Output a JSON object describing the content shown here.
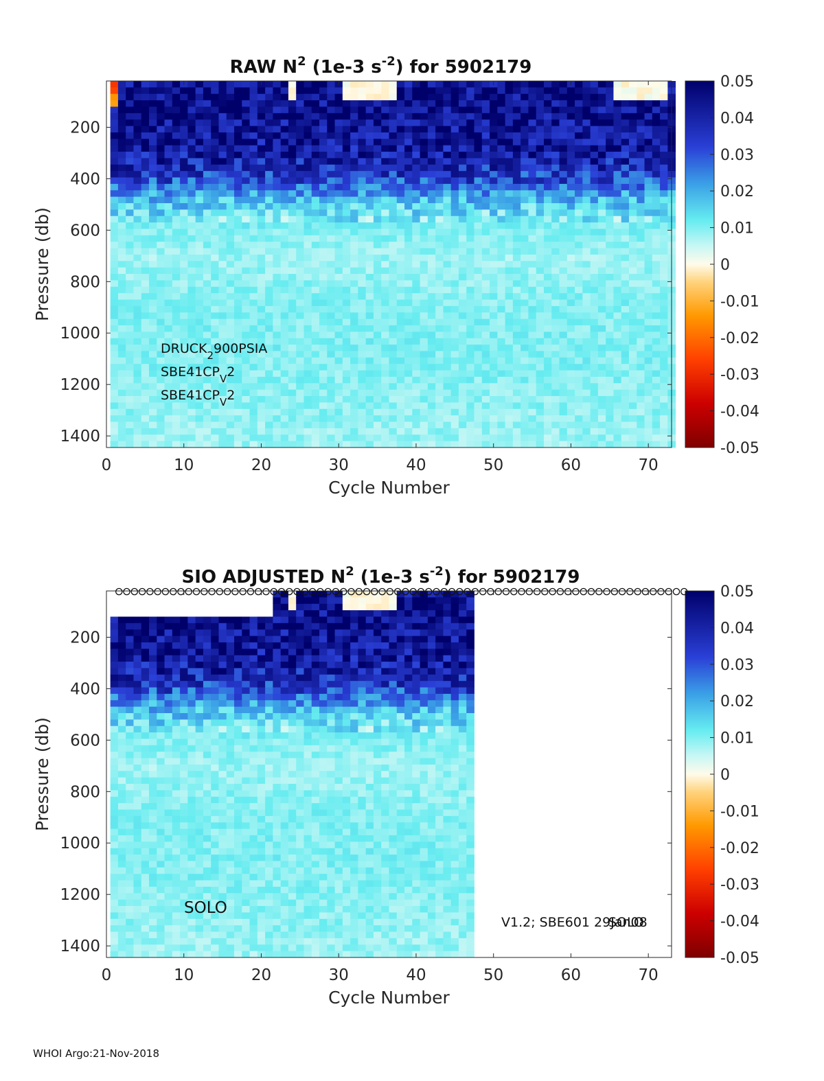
{
  "footer": "WHOI Argo:21-Nov-2018",
  "chart_data": [
    {
      "type": "heatmap",
      "title": "RAW N² (1e-3 s⁻²) for 5902179",
      "title_parts": {
        "pre": "RAW N",
        "sup1": "2",
        "mid": " (1e-3 s",
        "sup2": "-2",
        "post": ") for 5902179"
      },
      "xlabel": "Cycle Number",
      "ylabel": "Pressure (db)",
      "xlim": [
        0,
        73
      ],
      "ylim": [
        1445,
        20
      ],
      "xticks": [
        0,
        10,
        20,
        30,
        40,
        50,
        60,
        70
      ],
      "yticks": [
        200,
        400,
        600,
        800,
        1000,
        1200,
        1400
      ],
      "cycles": [
        1,
        73
      ],
      "pressure_range": [
        20,
        1445
      ],
      "annotations": [
        {
          "base": "DRUCK",
          "sub": "2",
          "rest": "900PSIA"
        },
        {
          "base": "SBE41CP",
          "sub": "V",
          "rest": "2"
        },
        {
          "base": "SBE41CP",
          "sub": "V",
          "rest": "2"
        }
      ],
      "profile": [
        {
          "p": 20,
          "v": 0.045
        },
        {
          "p": 100,
          "v": 0.046
        },
        {
          "p": 200,
          "v": 0.044
        },
        {
          "p": 300,
          "v": 0.042
        },
        {
          "p": 400,
          "v": 0.033
        },
        {
          "p": 480,
          "v": 0.018
        },
        {
          "p": 560,
          "v": 0.011
        },
        {
          "p": 700,
          "v": 0.008
        },
        {
          "p": 900,
          "v": 0.01
        },
        {
          "p": 1100,
          "v": 0.01
        },
        {
          "p": 1300,
          "v": 0.009
        },
        {
          "p": 1445,
          "v": 0.008
        }
      ],
      "colorbar": {
        "min": -0.05,
        "max": 0.05,
        "ticks": [
          "0.05",
          "0.04",
          "0.03",
          "0.02",
          "0.01",
          "0",
          "-0.01",
          "-0.02",
          "-0.03",
          "-0.04",
          "-0.05"
        ]
      }
    },
    {
      "type": "heatmap",
      "title": "SIO ADJUSTED N² (1e-3 s⁻²) for 5902179",
      "title_parts": {
        "pre": "SIO  ADJUSTED N",
        "sup1": "2",
        "mid": " (1e-3 s",
        "sup2": "-2",
        "post": ") for 5902179"
      },
      "xlabel": "Cycle Number",
      "ylabel": "Pressure (db)",
      "xlim": [
        0,
        73
      ],
      "ylim": [
        1445,
        20
      ],
      "xticks": [
        0,
        10,
        20,
        30,
        40,
        50,
        60,
        70
      ],
      "yticks": [
        200,
        400,
        600,
        800,
        1000,
        1200,
        1400
      ],
      "cycles": [
        1,
        47
      ],
      "pressure_range": [
        20,
        1445
      ],
      "blank_top_cycles": [
        1,
        21
      ],
      "blank_top_pressure": 100,
      "qc_marker_cycles": [
        1,
        74
      ],
      "annotation_left": "SOLO",
      "annotation_right": "V1.2; SBE601 29Jan08",
      "annotation_right_overlay": "SOLO",
      "profile": [
        {
          "p": 20,
          "v": 0.045
        },
        {
          "p": 100,
          "v": 0.046
        },
        {
          "p": 200,
          "v": 0.044
        },
        {
          "p": 300,
          "v": 0.042
        },
        {
          "p": 400,
          "v": 0.033
        },
        {
          "p": 480,
          "v": 0.018
        },
        {
          "p": 560,
          "v": 0.011
        },
        {
          "p": 700,
          "v": 0.008
        },
        {
          "p": 900,
          "v": 0.01
        },
        {
          "p": 1100,
          "v": 0.01
        },
        {
          "p": 1300,
          "v": 0.009
        },
        {
          "p": 1445,
          "v": 0.008
        }
      ],
      "colorbar": {
        "min": -0.05,
        "max": 0.05,
        "ticks": [
          "0.05",
          "0.04",
          "0.03",
          "0.02",
          "0.01",
          "0",
          "-0.01",
          "-0.02",
          "-0.03",
          "-0.04",
          "-0.05"
        ]
      }
    }
  ]
}
